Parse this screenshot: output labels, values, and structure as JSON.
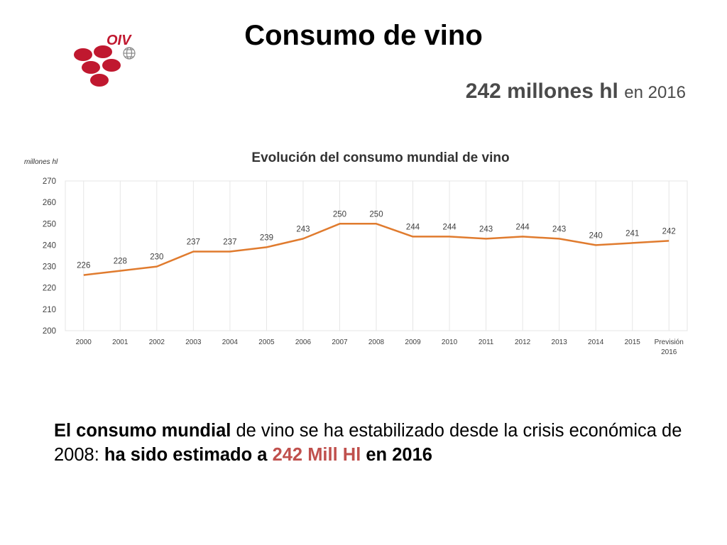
{
  "title": "Consumo de vino",
  "headline": {
    "value": "242 millones hl",
    "suffix": "en 2016"
  },
  "logo": {
    "text": "OIV",
    "color": "#c0182f"
  },
  "chart_data": {
    "type": "line",
    "title": "Evolución del consumo mundial de vino",
    "ylabel": "millones hl",
    "xlabel": "",
    "ylim": [
      200,
      270
    ],
    "yticks": [
      200,
      210,
      220,
      230,
      240,
      250,
      260,
      270
    ],
    "categories": [
      "2000",
      "2001",
      "2002",
      "2003",
      "2004",
      "2005",
      "2006",
      "2007",
      "2008",
      "2009",
      "2010",
      "2011",
      "2012",
      "2013",
      "2014",
      "2015",
      "Previsión 2016"
    ],
    "values": [
      226,
      228,
      230,
      237,
      237,
      239,
      243,
      250,
      250,
      244,
      244,
      243,
      244,
      243,
      240,
      241,
      242
    ],
    "line_color": "#e07b2e",
    "grid": "vertical",
    "legend": "none"
  },
  "body": {
    "p1": "El consumo mundial",
    "p2": " de vino se ha estabilizado desde la crisis económica de 2008: ",
    "p3": "ha sido estimado a ",
    "p4": "242 Mill Hl",
    "p5": " en 2016"
  }
}
